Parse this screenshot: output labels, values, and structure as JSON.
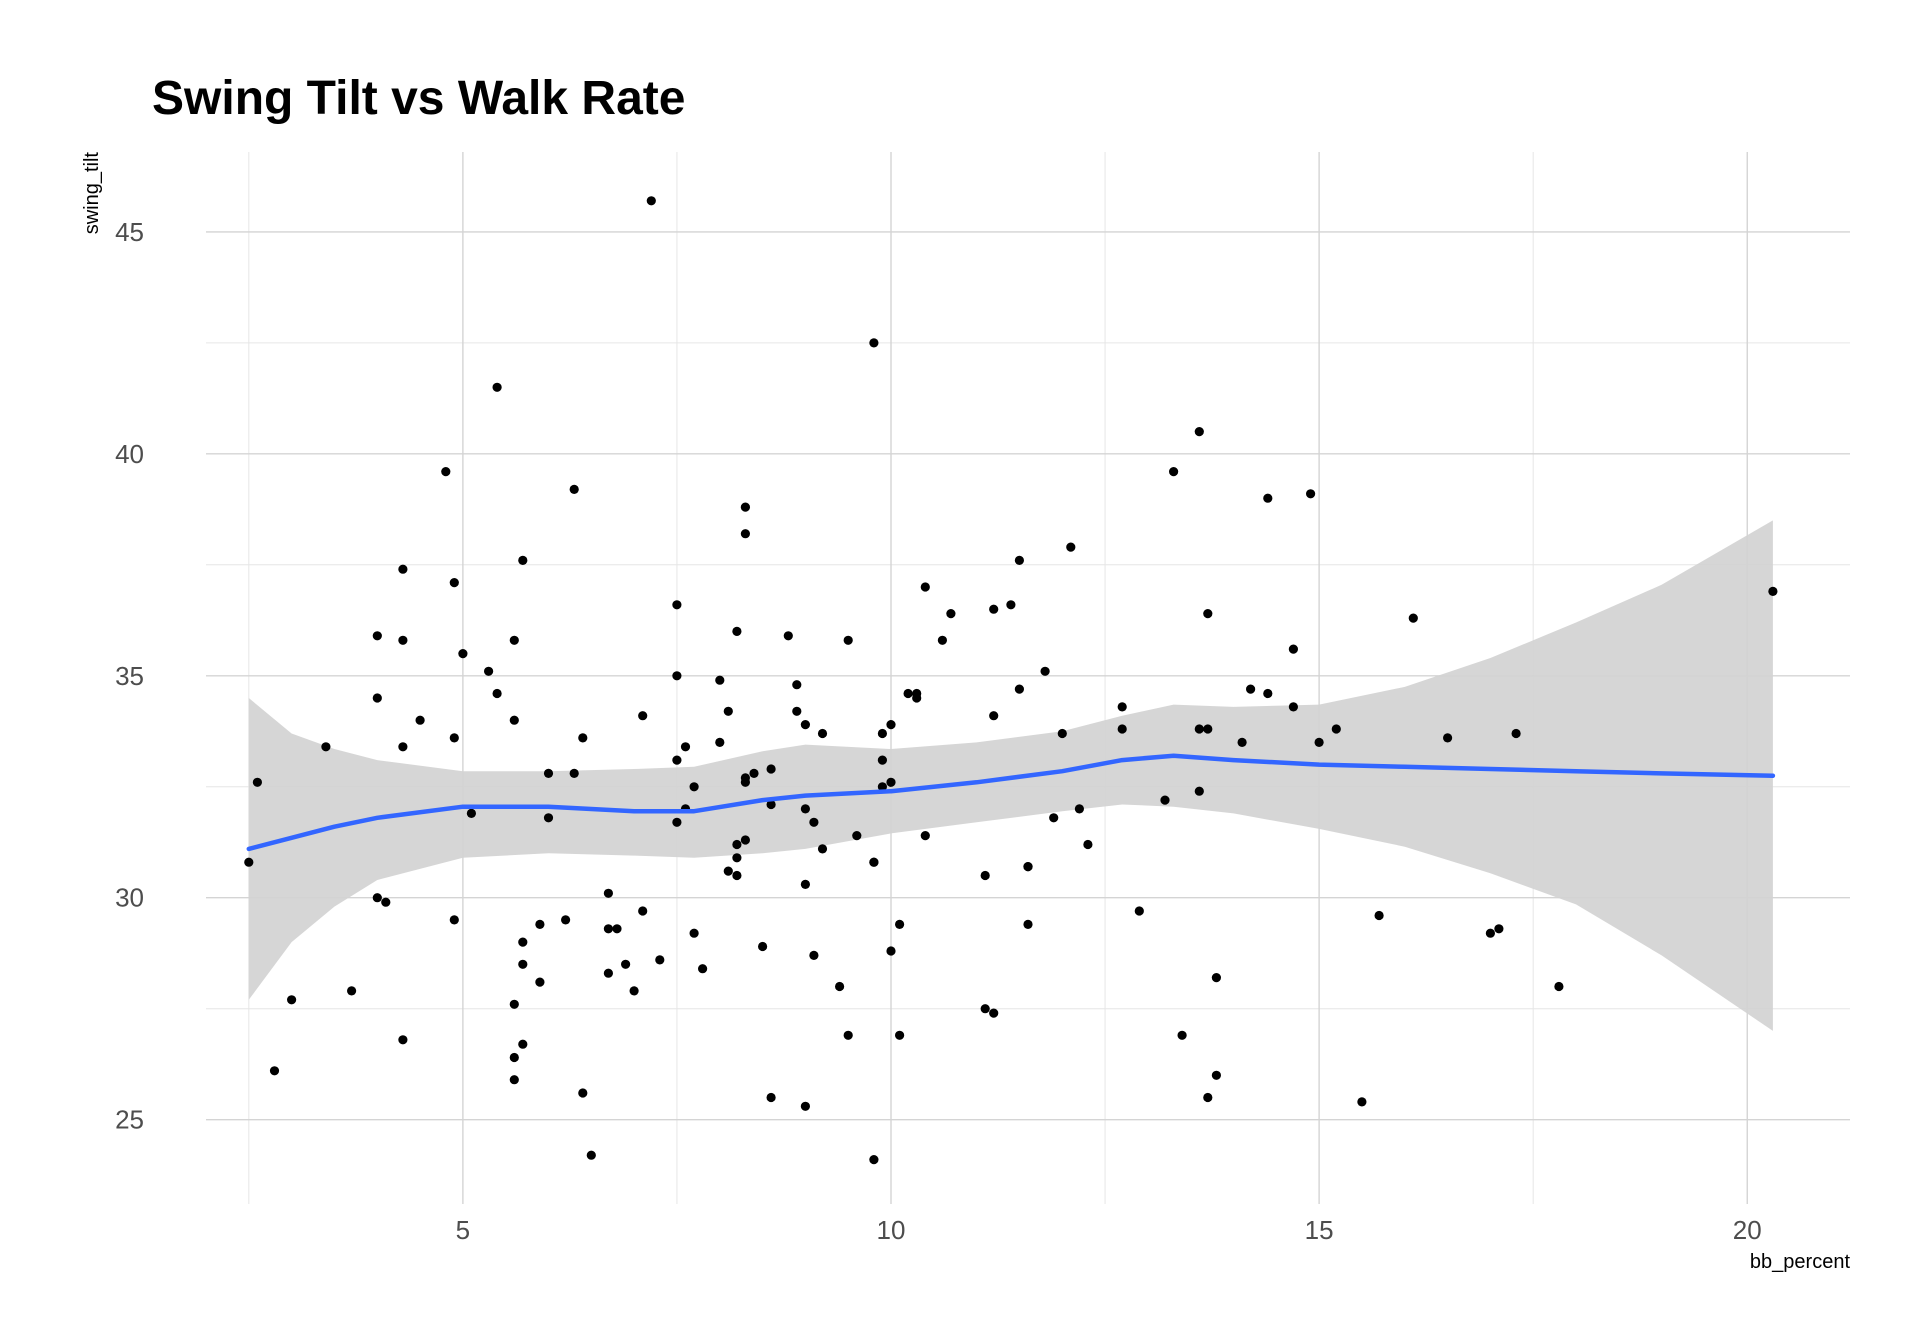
{
  "chart_data": {
    "type": "scatter",
    "title": "Swing Tilt vs Walk Rate",
    "xlabel": "bb_percent",
    "ylabel": "swing_tilt",
    "xlim": [
      2.0,
      21.2
    ],
    "ylim": [
      23.1,
      46.8
    ],
    "x_ticks": [
      5,
      10,
      15,
      20
    ],
    "y_ticks": [
      25,
      30,
      35,
      40,
      45
    ],
    "grid": true,
    "legend": "none",
    "point_color": "#000000",
    "smooth_color": "#3366FF",
    "band_color": "#D3D3D3",
    "points": [
      [
        2.5,
        30.8
      ],
      [
        2.6,
        32.6
      ],
      [
        2.8,
        26.1
      ],
      [
        3.0,
        27.7
      ],
      [
        3.4,
        33.4
      ],
      [
        3.7,
        27.9
      ],
      [
        4.0,
        35.9
      ],
      [
        4.0,
        34.5
      ],
      [
        4.0,
        30.0
      ],
      [
        4.1,
        29.9
      ],
      [
        4.3,
        37.4
      ],
      [
        4.3,
        35.8
      ],
      [
        4.3,
        33.4
      ],
      [
        4.3,
        26.8
      ],
      [
        4.5,
        34.0
      ],
      [
        4.8,
        39.6
      ],
      [
        4.9,
        37.1
      ],
      [
        4.9,
        33.6
      ],
      [
        4.9,
        29.5
      ],
      [
        5.0,
        35.5
      ],
      [
        5.1,
        31.9
      ],
      [
        5.3,
        35.1
      ],
      [
        5.4,
        41.5
      ],
      [
        5.4,
        34.6
      ],
      [
        5.6,
        35.8
      ],
      [
        5.6,
        34.0
      ],
      [
        5.6,
        27.6
      ],
      [
        5.6,
        26.4
      ],
      [
        5.6,
        25.9
      ],
      [
        5.7,
        37.6
      ],
      [
        5.7,
        29.0
      ],
      [
        5.7,
        28.5
      ],
      [
        5.7,
        26.7
      ],
      [
        5.9,
        29.4
      ],
      [
        5.9,
        28.1
      ],
      [
        6.0,
        32.8
      ],
      [
        6.0,
        31.8
      ],
      [
        6.2,
        29.5
      ],
      [
        6.3,
        39.2
      ],
      [
        6.3,
        32.8
      ],
      [
        6.4,
        33.6
      ],
      [
        6.4,
        25.6
      ],
      [
        6.5,
        24.2
      ],
      [
        6.7,
        30.1
      ],
      [
        6.7,
        29.3
      ],
      [
        6.7,
        28.3
      ],
      [
        6.8,
        29.3
      ],
      [
        6.9,
        28.5
      ],
      [
        7.0,
        27.9
      ],
      [
        7.1,
        34.1
      ],
      [
        7.1,
        29.7
      ],
      [
        7.2,
        45.7
      ],
      [
        7.3,
        28.6
      ],
      [
        7.5,
        36.6
      ],
      [
        7.5,
        35.0
      ],
      [
        7.5,
        33.1
      ],
      [
        7.5,
        31.7
      ],
      [
        7.6,
        33.4
      ],
      [
        7.6,
        32.0
      ],
      [
        7.7,
        32.5
      ],
      [
        7.7,
        29.2
      ],
      [
        7.8,
        28.4
      ],
      [
        8.0,
        34.9
      ],
      [
        8.0,
        33.5
      ],
      [
        8.1,
        34.2
      ],
      [
        8.1,
        30.6
      ],
      [
        8.2,
        36.0
      ],
      [
        8.2,
        31.2
      ],
      [
        8.2,
        30.9
      ],
      [
        8.2,
        30.5
      ],
      [
        8.3,
        38.8
      ],
      [
        8.3,
        38.2
      ],
      [
        8.3,
        32.7
      ],
      [
        8.3,
        32.6
      ],
      [
        8.3,
        31.3
      ],
      [
        8.4,
        32.8
      ],
      [
        8.5,
        28.9
      ],
      [
        8.6,
        32.9
      ],
      [
        8.6,
        32.1
      ],
      [
        8.6,
        25.5
      ],
      [
        8.8,
        35.9
      ],
      [
        8.9,
        34.8
      ],
      [
        8.9,
        34.2
      ],
      [
        9.0,
        33.9
      ],
      [
        9.0,
        32.0
      ],
      [
        9.0,
        30.3
      ],
      [
        9.0,
        25.3
      ],
      [
        9.1,
        31.7
      ],
      [
        9.1,
        28.7
      ],
      [
        9.2,
        33.7
      ],
      [
        9.2,
        31.1
      ],
      [
        9.4,
        28.0
      ],
      [
        9.5,
        35.8
      ],
      [
        9.5,
        26.9
      ],
      [
        9.6,
        31.4
      ],
      [
        9.8,
        42.5
      ],
      [
        9.8,
        30.8
      ],
      [
        9.8,
        30.8
      ],
      [
        9.8,
        24.1
      ],
      [
        9.9,
        33.7
      ],
      [
        9.9,
        33.1
      ],
      [
        9.9,
        32.5
      ],
      [
        10.0,
        33.9
      ],
      [
        10.0,
        32.6
      ],
      [
        10.0,
        28.8
      ],
      [
        10.1,
        29.4
      ],
      [
        10.1,
        26.9
      ],
      [
        10.2,
        34.6
      ],
      [
        10.3,
        34.6
      ],
      [
        10.3,
        34.5
      ],
      [
        10.4,
        37.0
      ],
      [
        10.4,
        31.4
      ],
      [
        10.6,
        35.8
      ],
      [
        10.7,
        36.4
      ],
      [
        11.1,
        30.5
      ],
      [
        11.1,
        27.5
      ],
      [
        11.2,
        36.5
      ],
      [
        11.2,
        34.1
      ],
      [
        11.2,
        27.4
      ],
      [
        11.4,
        36.6
      ],
      [
        11.5,
        37.6
      ],
      [
        11.5,
        34.7
      ],
      [
        11.6,
        30.7
      ],
      [
        11.6,
        30.7
      ],
      [
        11.6,
        29.4
      ],
      [
        11.8,
        35.1
      ],
      [
        11.9,
        31.8
      ],
      [
        12.0,
        33.7
      ],
      [
        12.1,
        37.9
      ],
      [
        12.2,
        32.0
      ],
      [
        12.3,
        31.2
      ],
      [
        12.7,
        34.3
      ],
      [
        12.7,
        33.8
      ],
      [
        12.9,
        29.7
      ],
      [
        13.2,
        32.2
      ],
      [
        13.3,
        39.6
      ],
      [
        13.4,
        26.9
      ],
      [
        13.6,
        40.5
      ],
      [
        13.6,
        33.8
      ],
      [
        13.6,
        32.4
      ],
      [
        13.7,
        36.4
      ],
      [
        13.7,
        33.8
      ],
      [
        13.7,
        25.5
      ],
      [
        13.8,
        28.2
      ],
      [
        13.8,
        26.0
      ],
      [
        14.1,
        33.5
      ],
      [
        14.2,
        34.7
      ],
      [
        14.4,
        39.0
      ],
      [
        14.4,
        34.6
      ],
      [
        14.7,
        35.6
      ],
      [
        14.7,
        34.3
      ],
      [
        14.9,
        39.1
      ],
      [
        15.0,
        33.5
      ],
      [
        15.2,
        33.8
      ],
      [
        15.5,
        25.4
      ],
      [
        15.7,
        29.6
      ],
      [
        16.1,
        36.3
      ],
      [
        16.5,
        33.6
      ],
      [
        17.0,
        29.2
      ],
      [
        17.1,
        29.3
      ],
      [
        17.3,
        33.7
      ],
      [
        17.8,
        28.0
      ],
      [
        20.3,
        36.9
      ]
    ],
    "smooth": {
      "x": [
        2.5,
        3.0,
        3.5,
        4.0,
        5.0,
        6.0,
        7.0,
        7.7,
        8.5,
        9.0,
        10.0,
        11.0,
        12.0,
        12.7,
        13.3,
        14.0,
        15.0,
        16.0,
        17.0,
        18.0,
        19.0,
        20.3
      ],
      "y": [
        31.1,
        31.35,
        31.6,
        31.8,
        32.05,
        32.05,
        31.95,
        31.95,
        32.2,
        32.3,
        32.4,
        32.6,
        32.85,
        33.1,
        33.2,
        33.1,
        33.0,
        32.95,
        32.9,
        32.85,
        32.8,
        32.75
      ],
      "lower": [
        27.7,
        29.0,
        29.8,
        30.4,
        30.9,
        31.0,
        30.95,
        30.9,
        31.0,
        31.1,
        31.45,
        31.7,
        31.95,
        32.1,
        32.05,
        31.9,
        31.55,
        31.15,
        30.55,
        29.85,
        28.7,
        27.0
      ],
      "upper": [
        34.5,
        33.7,
        33.35,
        33.1,
        32.85,
        32.85,
        32.9,
        32.95,
        33.3,
        33.45,
        33.35,
        33.5,
        33.75,
        34.1,
        34.35,
        34.3,
        34.35,
        34.75,
        35.4,
        36.2,
        37.05,
        38.5
      ]
    }
  }
}
